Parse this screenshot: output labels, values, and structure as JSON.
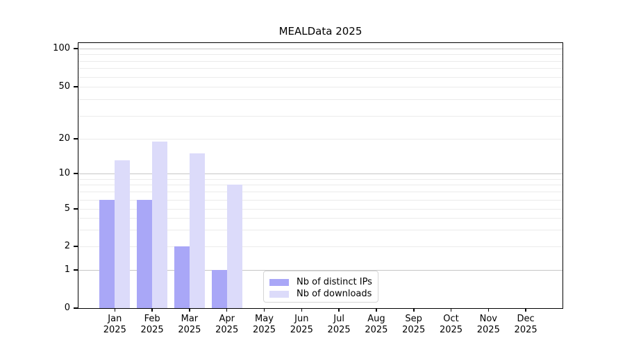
{
  "chart_data": {
    "type": "bar",
    "title": "MEALData 2025",
    "categories": [
      "Jan",
      "Feb",
      "Mar",
      "Apr",
      "May",
      "Jun",
      "Jul",
      "Aug",
      "Sep",
      "Oct",
      "Nov",
      "Dec"
    ],
    "x_year_label": "2025",
    "series": [
      {
        "name": "Nb of distinct IPs",
        "color": "#a9a7f7",
        "values": [
          6,
          6,
          2,
          1,
          0,
          0,
          0,
          0,
          0,
          0,
          0,
          0
        ]
      },
      {
        "name": "Nb of downloads",
        "color": "#dcdbfa",
        "values": [
          13,
          19,
          15,
          8,
          0,
          0,
          0,
          0,
          0,
          0,
          0,
          0
        ]
      }
    ],
    "y_axis": {
      "scale": "log-like with 0 baseline",
      "tick_labels": [
        0,
        1,
        2,
        5,
        10,
        20,
        50,
        100
      ],
      "decade_gridlines": [
        1,
        10,
        100
      ],
      "minor_gridlines": [
        3,
        4,
        6,
        7,
        8,
        9,
        30,
        40,
        60,
        70,
        80,
        90
      ],
      "ylim": [
        0,
        110
      ]
    },
    "legend": {
      "entries": [
        "Nb of distinct IPs",
        "Nb of downloads"
      ],
      "location": "bottom-center"
    },
    "grid": true
  },
  "colors": {
    "bar_distinct_ips": "#a9a7f7",
    "bar_downloads": "#dcdbfa",
    "gridline_decade": "#c6c6c6",
    "gridline_minor": "#ebebeb",
    "axis": "#000000",
    "background": "#ffffff"
  }
}
